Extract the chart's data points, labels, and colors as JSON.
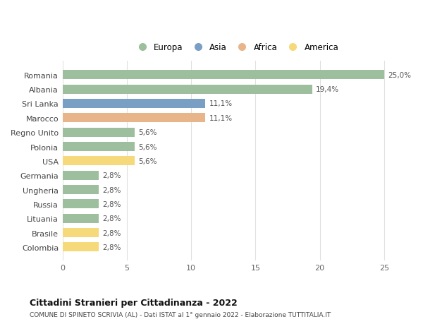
{
  "categories": [
    "Colombia",
    "Brasile",
    "Lituania",
    "Russia",
    "Ungheria",
    "Germania",
    "USA",
    "Polonia",
    "Regno Unito",
    "Marocco",
    "Sri Lanka",
    "Albania",
    "Romania"
  ],
  "values": [
    2.8,
    2.8,
    2.8,
    2.8,
    2.8,
    2.8,
    5.6,
    5.6,
    5.6,
    11.1,
    11.1,
    19.4,
    25.0
  ],
  "labels": [
    "2,8%",
    "2,8%",
    "2,8%",
    "2,8%",
    "2,8%",
    "2,8%",
    "5,6%",
    "5,6%",
    "5,6%",
    "11,1%",
    "11,1%",
    "19,4%",
    "25,0%"
  ],
  "colors": [
    "#f5d97a",
    "#f5d97a",
    "#9dbf9d",
    "#9dbf9d",
    "#9dbf9d",
    "#9dbf9d",
    "#f5d97a",
    "#9dbf9d",
    "#9dbf9d",
    "#e8b48a",
    "#7a9fc4",
    "#9dbf9d",
    "#9dbf9d"
  ],
  "legend_labels": [
    "Europa",
    "Asia",
    "Africa",
    "America"
  ],
  "legend_colors": [
    "#9dbf9d",
    "#7a9fc4",
    "#e8b48a",
    "#f5d97a"
  ],
  "title_main": "Cittadini Stranieri per Cittadinanza - 2022",
  "title_sub": "COMUNE DI SPINETO SCRIVIA (AL) - Dati ISTAT al 1° gennaio 2022 - Elaborazione TUTTITALIA.IT",
  "xlim_max": 27,
  "xticks": [
    0,
    5,
    10,
    15,
    20,
    25
  ],
  "bg_color": "#ffffff",
  "grid_color": "#e0e0e0"
}
